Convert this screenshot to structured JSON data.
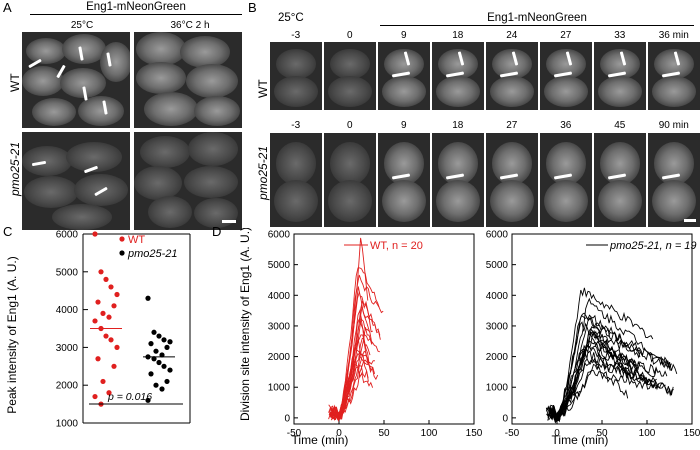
{
  "panel_a": {
    "letter": "A",
    "title": "Eng1-mNeonGreen",
    "col_labels": [
      "25°C",
      "36°C 2 h"
    ],
    "row_labels": [
      "WT",
      "pmo25-21"
    ]
  },
  "panel_b": {
    "letter": "B",
    "temp": "25°C",
    "title": "Eng1-mNeonGreen",
    "wt_times": [
      "-3",
      "0",
      "9",
      "18",
      "24",
      "27",
      "33",
      "36 min"
    ],
    "mut_times": [
      "-3",
      "0",
      "9",
      "18",
      "27",
      "36",
      "45",
      "90 min"
    ],
    "row_labels": [
      "WT",
      "pmo25-21"
    ]
  },
  "panel_c": {
    "letter": "C",
    "legend_wt": "WT",
    "legend_mut": "pmo25-21",
    "pvalue_label": "p = 0.016",
    "colors": {
      "wt": "#e0201f",
      "mut": "#000000"
    }
  },
  "panel_d": {
    "letter": "D",
    "legend_wt": "WT, n = 20",
    "legend_mut": "pmo25-21, n = 19"
  },
  "chart_data": [
    {
      "type": "scatter",
      "id": "C",
      "ylabel": "Peak intensity of Eng1 (A. U.)",
      "ylim": [
        1000,
        6000
      ],
      "yticks": [
        1000,
        2000,
        3000,
        4000,
        5000,
        6000
      ],
      "series": [
        {
          "name": "WT",
          "color": "#e0201f",
          "median": 3500,
          "values": [
            6000,
            5000,
            4800,
            4600,
            4400,
            4200,
            4100,
            3900,
            3800,
            3700,
            3500,
            3300,
            3200,
            3000,
            2700,
            2500,
            2100,
            1800,
            1700,
            1500
          ]
        },
        {
          "name": "pmo25-21",
          "color": "#000000",
          "median": 2750,
          "values": [
            4300,
            3400,
            3300,
            3200,
            3150,
            3100,
            3000,
            2900,
            2800,
            2750,
            2700,
            2600,
            2500,
            2400,
            2300,
            2100,
            2000,
            1900,
            1600
          ]
        }
      ],
      "annotation": "p = 0.016"
    },
    {
      "type": "line",
      "id": "D-left",
      "xlabel": "Time (min)",
      "ylabel": "Division site intensity of Eng1 (A. U.)",
      "xlim": [
        -50,
        150
      ],
      "ylim": [
        -200,
        6000
      ],
      "xticks": [
        -50,
        0,
        50,
        100,
        150
      ],
      "yticks": [
        0,
        1000,
        2000,
        3000,
        4000,
        5000,
        6000
      ],
      "color": "#e0201f",
      "series": [
        {
          "name": "WT traces (n = 20)",
          "peaks": [
            6000,
            5100,
            4600,
            4300,
            4100,
            3900,
            3700,
            3500,
            3300,
            3100,
            2900,
            2800,
            2700,
            2500,
            2300,
            2200,
            2000,
            1900,
            1800,
            1600
          ]
        }
      ]
    },
    {
      "type": "line",
      "id": "D-right",
      "xlabel": "Time (min)",
      "xlim": [
        -50,
        150
      ],
      "ylim": [
        -200,
        6000
      ],
      "xticks": [
        -50,
        0,
        50,
        100,
        150
      ],
      "yticks": [
        0,
        1000,
        2000,
        3000,
        4000,
        5000,
        6000
      ],
      "color": "#000000",
      "series": [
        {
          "name": "pmo25-21 traces (n = 19)",
          "peaks": [
            4200,
            3800,
            3500,
            3300,
            3200,
            3100,
            3000,
            2900,
            2800,
            2700,
            2600,
            2500,
            2400,
            2300,
            2200,
            2000,
            1900,
            1700,
            1500
          ]
        }
      ]
    }
  ]
}
